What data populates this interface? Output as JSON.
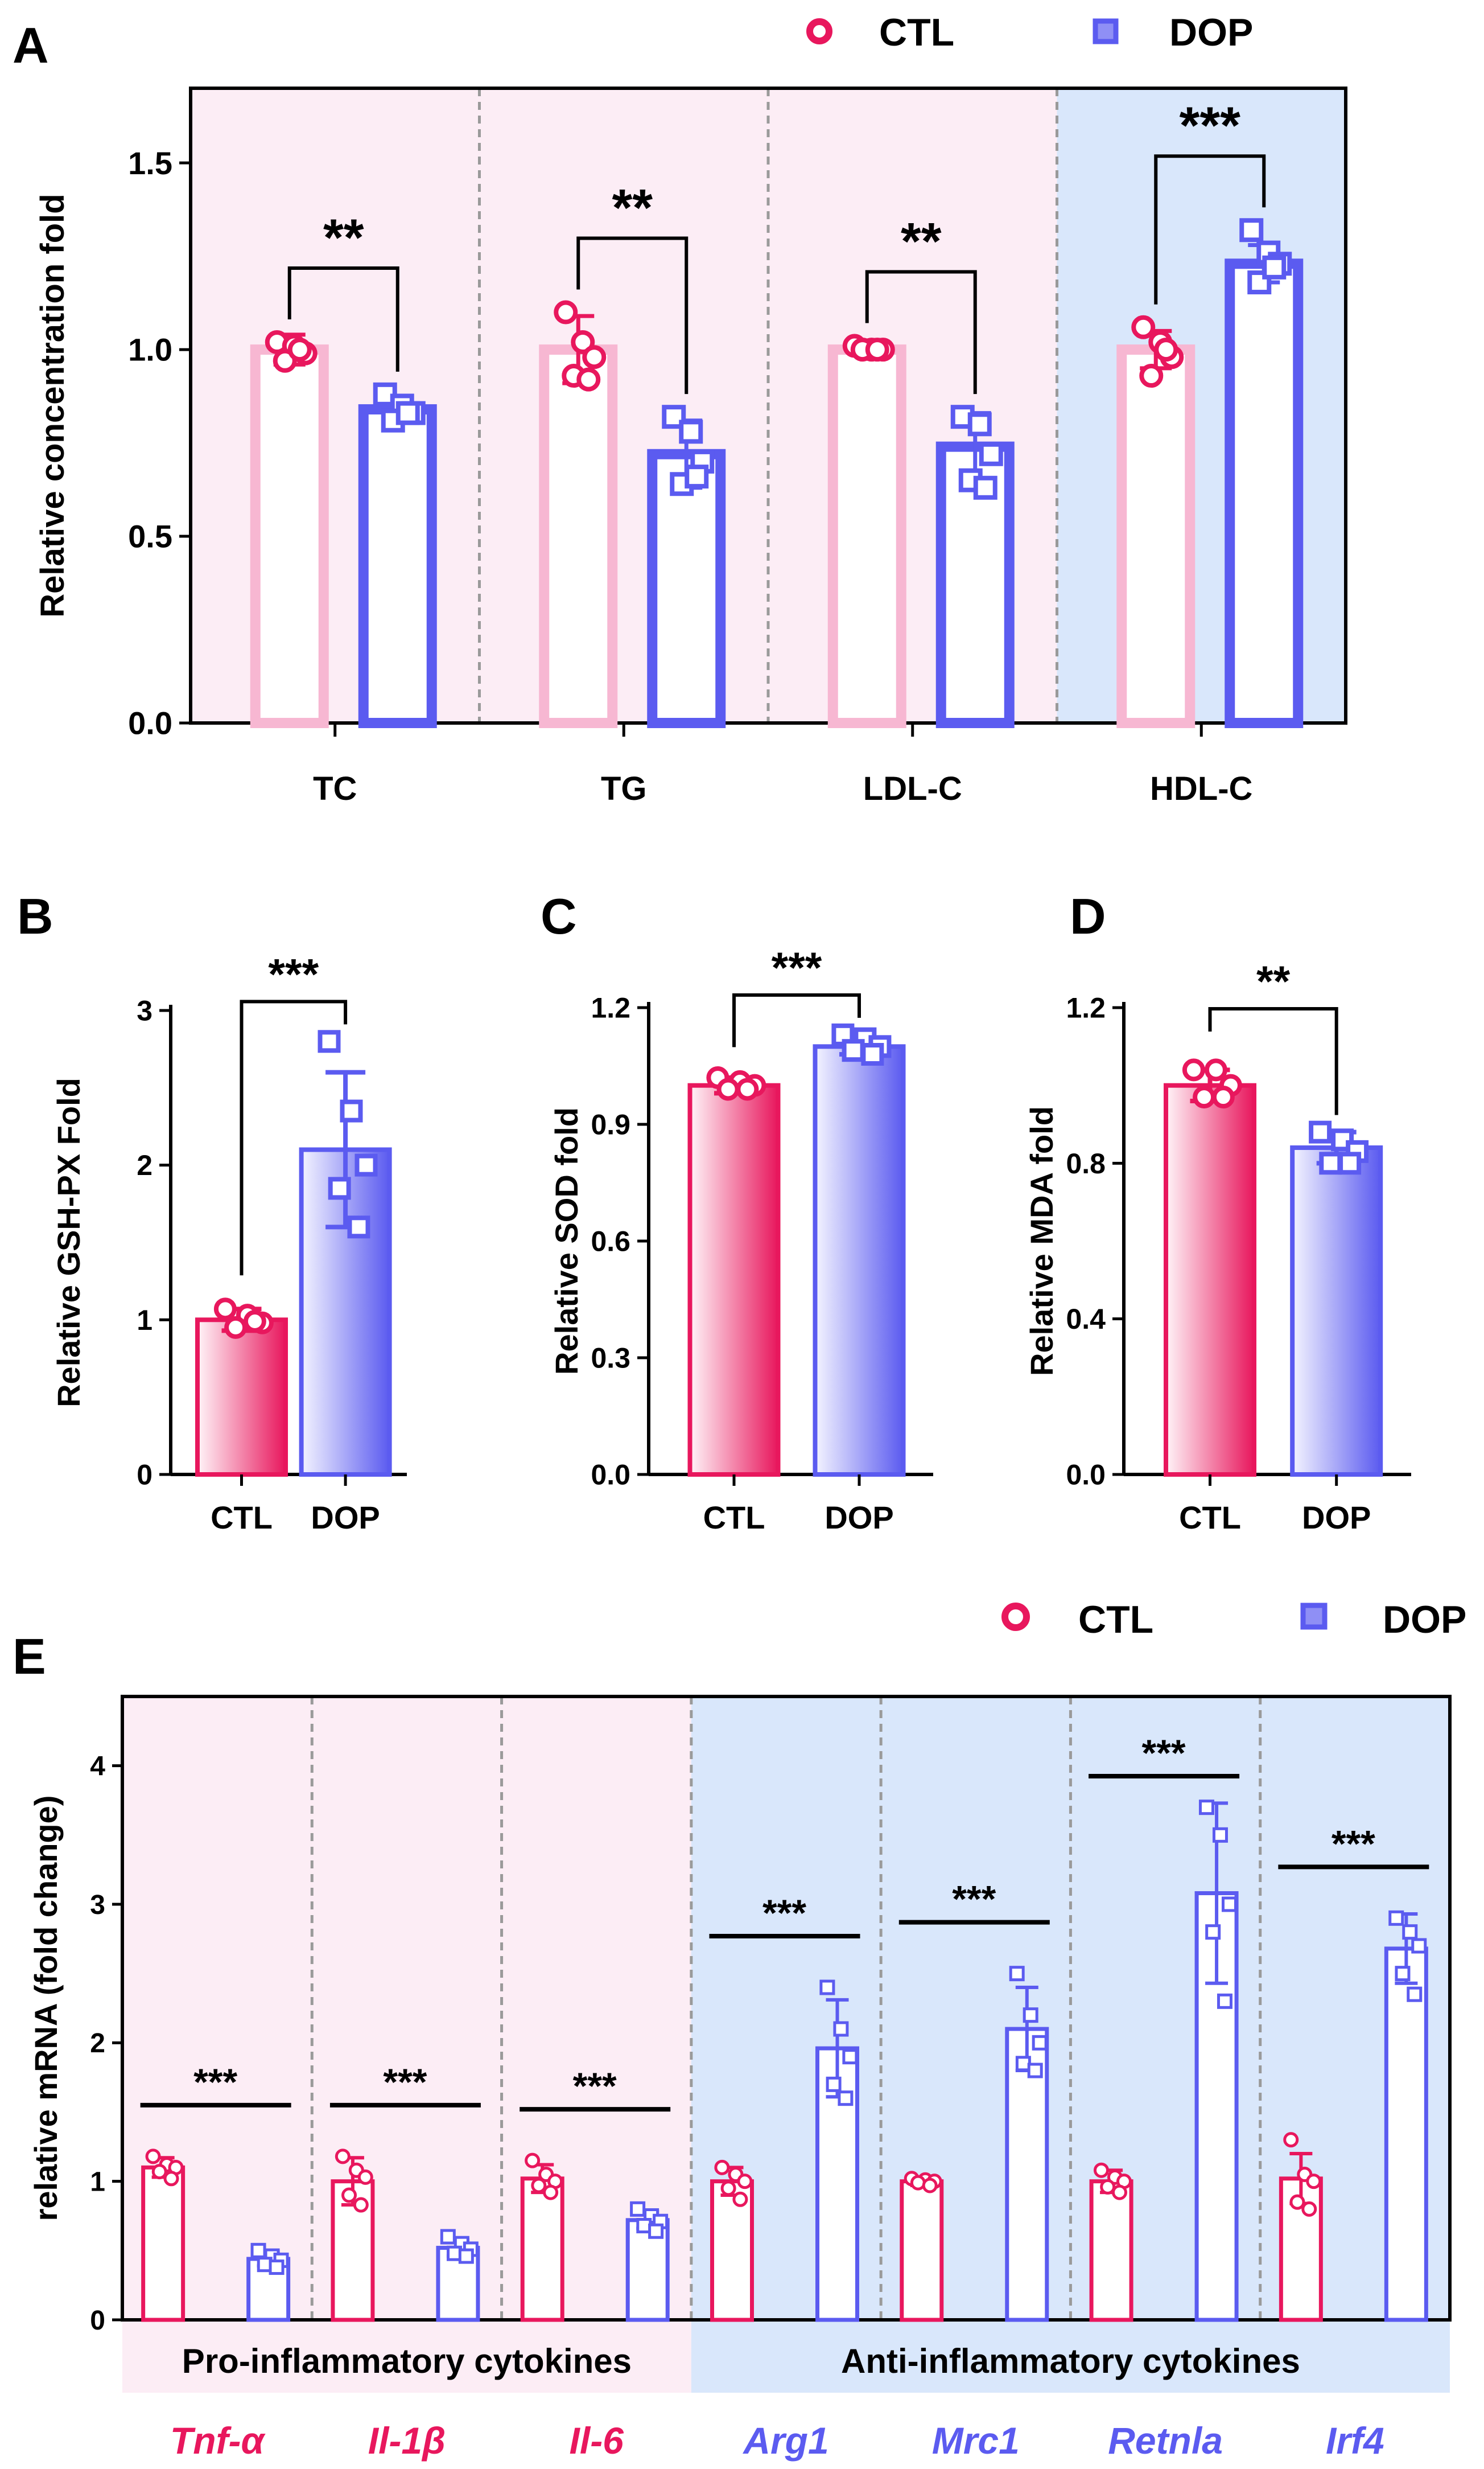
{
  "colors": {
    "ctl": "#e8175d",
    "dop": "#5b5bf0",
    "ctl_light": "#f7b7d2",
    "pink_bg": "#fcedf5",
    "blue_bg": "#d9e7fb",
    "divider": "#9a9a9a",
    "axis": "#000000"
  },
  "legend": {
    "ctl": "CTL",
    "dop": "DOP"
  },
  "chart_data": [
    {
      "panel": "A",
      "type": "bar",
      "ylabel": "Relative concentration fold",
      "ylim": [
        0,
        1.7
      ],
      "yticks": [
        0.0,
        0.5,
        1.0,
        1.5
      ],
      "ytick_labels": [
        "0.0",
        "0.5",
        "1.0",
        "1.5"
      ],
      "categories": [
        "TC",
        "TG",
        "LDL-C",
        "HDL-C"
      ],
      "series": [
        {
          "name": "CTL",
          "values": [
            1.0,
            1.0,
            1.0,
            1.0
          ],
          "error": [
            0.04,
            0.09,
            0.01,
            0.05
          ],
          "points": [
            [
              1.02,
              1.01,
              0.99,
              0.97,
              1.0
            ],
            [
              1.1,
              1.02,
              0.98,
              0.93,
              0.92
            ],
            [
              1.01,
              1.0,
              1.0,
              1.0,
              1.0
            ],
            [
              1.06,
              1.02,
              0.98,
              0.93,
              1.0
            ]
          ]
        },
        {
          "name": "DOP",
          "values": [
            0.84,
            0.72,
            0.74,
            1.23
          ],
          "error": [
            0.03,
            0.09,
            0.09,
            0.05
          ],
          "points": [
            [
              0.88,
              0.85,
              0.83,
              0.81,
              0.83
            ],
            [
              0.82,
              0.78,
              0.7,
              0.64,
              0.66
            ],
            [
              0.82,
              0.8,
              0.72,
              0.65,
              0.63
            ],
            [
              1.32,
              1.26,
              1.23,
              1.18,
              1.22
            ]
          ]
        }
      ],
      "significance": [
        "**",
        "**",
        "**",
        "***"
      ],
      "groups": [
        {
          "label": "",
          "from": 0,
          "to": 2,
          "bg": "pink"
        },
        {
          "label": "",
          "from": 3,
          "to": 3,
          "bg": "blue"
        }
      ]
    },
    {
      "panel": "B",
      "type": "bar",
      "ylabel": "Relative GSH-PX Fold",
      "ylim": [
        0,
        3
      ],
      "yticks": [
        0,
        1,
        2,
        3
      ],
      "ytick_labels": [
        "0",
        "1",
        "2",
        "3"
      ],
      "categories": [
        "CTL",
        "DOP"
      ],
      "values": [
        1.0,
        2.1
      ],
      "error": [
        0.07,
        0.5
      ],
      "points": [
        [
          1.07,
          1.03,
          0.98,
          0.95,
          0.99
        ],
        [
          2.8,
          2.35,
          2.0,
          1.85,
          1.6
        ]
      ],
      "significance": "***"
    },
    {
      "panel": "C",
      "type": "bar",
      "ylabel": "Relative SOD fold",
      "ylim": [
        0,
        1.2
      ],
      "yticks": [
        0.0,
        0.3,
        0.6,
        0.9,
        1.2
      ],
      "ytick_labels": [
        "0.0",
        "0.3",
        "0.6",
        "0.9",
        "1.2"
      ],
      "categories": [
        "CTL",
        "DOP"
      ],
      "values": [
        1.0,
        1.1
      ],
      "error": [
        0.02,
        0.02
      ],
      "points": [
        [
          1.02,
          1.01,
          1.0,
          0.99,
          0.99
        ],
        [
          1.13,
          1.12,
          1.1,
          1.09,
          1.08
        ]
      ],
      "significance": "***"
    },
    {
      "panel": "D",
      "type": "bar",
      "ylabel": "Relative MDA fold",
      "ylim": [
        0,
        1.2
      ],
      "yticks": [
        0.0,
        0.4,
        0.8,
        1.2
      ],
      "ytick_labels": [
        "0.0",
        "0.4",
        "0.8",
        "1.2"
      ],
      "categories": [
        "CTL",
        "DOP"
      ],
      "values": [
        1.0,
        0.84
      ],
      "error": [
        0.04,
        0.04
      ],
      "points": [
        [
          1.04,
          1.04,
          1.0,
          0.97,
          0.97
        ],
        [
          0.88,
          0.86,
          0.83,
          0.8,
          0.8
        ]
      ],
      "significance": "**"
    },
    {
      "panel": "E",
      "type": "bar",
      "ylabel": "relative mRNA (fold change)",
      "ylim": [
        0,
        4.5
      ],
      "yticks": [
        0,
        1,
        2,
        3,
        4
      ],
      "ytick_labels": [
        "0",
        "1",
        "2",
        "3",
        "4"
      ],
      "categories": [
        "Tnf-α",
        "Il-1β",
        "Il-6",
        "Arg1",
        "Mrc1",
        "Retnla",
        "Irf4"
      ],
      "category_colors": [
        "ctl",
        "ctl",
        "ctl",
        "dop",
        "dop",
        "dop",
        "dop"
      ],
      "series": [
        {
          "name": "CTL",
          "values": [
            1.1,
            1.0,
            1.02,
            1.0,
            1.0,
            1.0,
            1.02
          ],
          "error": [
            0.07,
            0.17,
            0.1,
            0.1,
            0.03,
            0.08,
            0.18
          ],
          "points": [
            [
              1.18,
              1.12,
              1.1,
              1.07,
              1.02
            ],
            [
              1.18,
              1.08,
              1.03,
              0.9,
              0.83
            ],
            [
              1.15,
              1.05,
              1.0,
              0.97,
              0.92
            ],
            [
              1.1,
              1.05,
              1.0,
              0.95,
              0.87
            ],
            [
              1.02,
              1.01,
              1.0,
              0.99,
              0.97
            ],
            [
              1.08,
              1.03,
              1.0,
              0.96,
              0.92
            ],
            [
              1.3,
              1.05,
              1.0,
              0.85,
              0.8
            ]
          ]
        },
        {
          "name": "DOP",
          "values": [
            0.44,
            0.52,
            0.72,
            1.96,
            2.1,
            3.08,
            2.68
          ],
          "error": [
            0.05,
            0.06,
            0.06,
            0.35,
            0.3,
            0.65,
            0.25
          ],
          "points": [
            [
              0.5,
              0.46,
              0.43,
              0.4,
              0.38
            ],
            [
              0.6,
              0.55,
              0.51,
              0.48,
              0.46
            ],
            [
              0.8,
              0.75,
              0.71,
              0.68,
              0.64
            ],
            [
              2.4,
              2.1,
              1.9,
              1.7,
              1.6
            ],
            [
              2.5,
              2.2,
              2.0,
              1.85,
              1.8
            ],
            [
              3.7,
              3.5,
              3.0,
              2.8,
              2.3
            ],
            [
              2.9,
              2.8,
              2.7,
              2.5,
              2.35
            ]
          ]
        }
      ],
      "significance": [
        "***",
        "***",
        "***",
        "***",
        "***",
        "***",
        "***"
      ],
      "groups": [
        {
          "label": "Pro-inflammatory cytokines",
          "from": 0,
          "to": 2,
          "bg": "pink"
        },
        {
          "label": "Anti-inflammatory cytokines",
          "from": 3,
          "to": 6,
          "bg": "blue"
        }
      ]
    }
  ]
}
